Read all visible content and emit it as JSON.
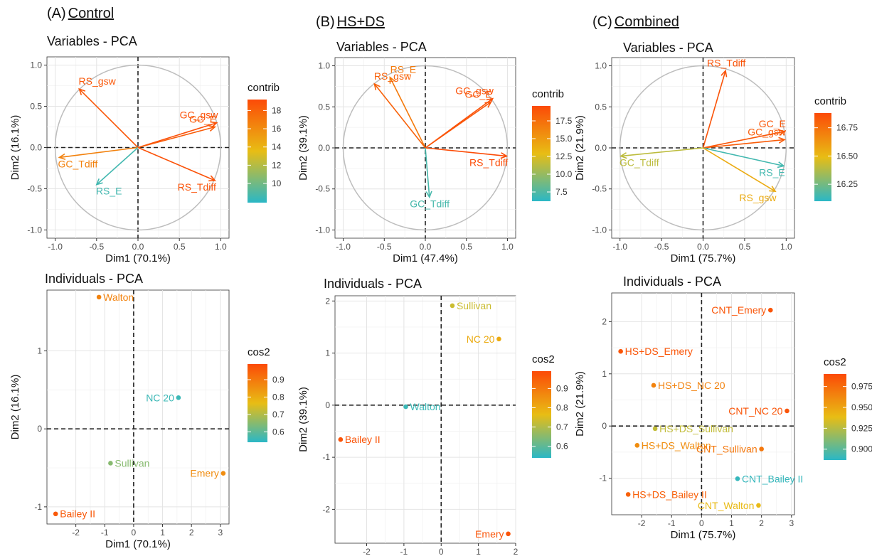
{
  "panels": [
    {
      "letter": "(A)",
      "title": "Control"
    },
    {
      "letter": "(B)",
      "title": "HS+DS"
    },
    {
      "letter": "(C)",
      "title": "Combined"
    }
  ],
  "legend_colors": {
    "low": "#2ab7c6",
    "mid": "#e8bd14",
    "high": "#fc4a07"
  },
  "chart_data": [
    {
      "type": "scatter",
      "subtype": "pca-variables-correlation-circle",
      "panel": "A",
      "title": "Variables - PCA",
      "xlabel": "Dim1 (70.1%)",
      "ylabel": "Dim2 (16.1%)",
      "xlim": [
        -1.1,
        1.1
      ],
      "ylim": [
        -1.1,
        1.1
      ],
      "xticks": [
        "-1.0",
        "-0.5",
        "0.0",
        "0.5",
        "1.0"
      ],
      "yticks": [
        "1.0",
        "0.5",
        "0.0",
        "-0.5",
        "-1.0"
      ],
      "grid": true,
      "legend": {
        "title": "contrib",
        "position": "right",
        "min": 7.9,
        "max": 19.2,
        "ticks": [
          "18",
          "16",
          "14",
          "12",
          "10"
        ]
      },
      "variables": [
        {
          "name": "RS_gsw",
          "x": -0.71,
          "y": 0.71,
          "contrib": 18.5
        },
        {
          "name": "GC_gsw",
          "x": 0.95,
          "y": 0.3,
          "contrib": 18.9
        },
        {
          "name": "GC_E",
          "x": 0.93,
          "y": 0.25,
          "contrib": 18.3
        },
        {
          "name": "GC_Tdiff",
          "x": -0.95,
          "y": -0.12,
          "contrib": 16.5
        },
        {
          "name": "RS_E",
          "x": -0.5,
          "y": -0.45,
          "contrib": 8.6
        },
        {
          "name": "RS_Tdiff",
          "x": 0.93,
          "y": -0.4,
          "contrib": 18.8
        }
      ]
    },
    {
      "type": "scatter",
      "subtype": "pca-variables-correlation-circle",
      "panel": "B",
      "title": "Variables - PCA",
      "xlabel": "Dim1 (47.4%)",
      "ylabel": "Dim2 (39.1%)",
      "xlim": [
        -1.1,
        1.1
      ],
      "ylim": [
        -1.1,
        1.1
      ],
      "xticks": [
        "-1.0",
        "-0.5",
        "0.0",
        "0.5",
        "1.0"
      ],
      "yticks": [
        "1.0",
        "0.5",
        "0.0",
        "-0.5",
        "-1.0"
      ],
      "grid": true,
      "legend": {
        "title": "contrib",
        "position": "right",
        "min": 6.2,
        "max": 19.6,
        "ticks": [
          "17.5",
          "15.0",
          "12.5",
          "10.0",
          "7.5"
        ]
      },
      "variables": [
        {
          "name": "RS_E",
          "x": -0.43,
          "y": 0.86,
          "contrib": 16.8
        },
        {
          "name": "RS_gsw",
          "x": -0.62,
          "y": 0.78,
          "contrib": 18.2
        },
        {
          "name": "GC_gsw",
          "x": 0.82,
          "y": 0.6,
          "contrib": 19.2
        },
        {
          "name": "GC_E",
          "x": 0.8,
          "y": 0.56,
          "contrib": 18.9
        },
        {
          "name": "RS_Tdiff",
          "x": 0.99,
          "y": -0.1,
          "contrib": 19.5
        },
        {
          "name": "GC_Tdiff",
          "x": 0.05,
          "y": -0.6,
          "contrib": 7.2
        }
      ]
    },
    {
      "type": "scatter",
      "subtype": "pca-variables-correlation-circle",
      "panel": "C",
      "title": "Variables - PCA",
      "xlabel": "Dim1 (75.7%)",
      "ylabel": "Dim2 (21.9%)",
      "xlim": [
        -1.1,
        1.1
      ],
      "ylim": [
        -1.1,
        1.1
      ],
      "xticks": [
        "-1.0",
        "-0.5",
        "0.0",
        "0.5",
        "1.0"
      ],
      "yticks": [
        "1.0",
        "0.5",
        "0.0",
        "-0.5",
        "-1.0"
      ],
      "grid": true,
      "legend": {
        "title": "contrib",
        "position": "right",
        "min": 16.1,
        "max": 16.88,
        "ticks": [
          "16.75",
          "16.50",
          "16.25"
        ]
      },
      "variables": [
        {
          "name": "RS_Tdiff",
          "x": 0.27,
          "y": 0.94,
          "contrib": 16.85
        },
        {
          "name": "GC_E",
          "x": 0.98,
          "y": 0.2,
          "contrib": 16.84
        },
        {
          "name": "GC_gsw",
          "x": 0.98,
          "y": 0.1,
          "contrib": 16.82
        },
        {
          "name": "GC_Tdiff",
          "x": -0.99,
          "y": -0.1,
          "contrib": 16.4
        },
        {
          "name": "RS_E",
          "x": 0.97,
          "y": -0.22,
          "contrib": 16.15
        },
        {
          "name": "RS_gsw",
          "x": 0.87,
          "y": -0.53,
          "contrib": 16.55
        }
      ]
    },
    {
      "type": "scatter",
      "subtype": "pca-individuals",
      "panel": "A",
      "title": "Individuals - PCA",
      "xlabel": "Dim1 (70.1%)",
      "ylabel": "Dim2 (16.1%)",
      "xlim": [
        -3.0,
        3.3
      ],
      "ylim": [
        -1.22,
        1.78
      ],
      "xticks": [
        "-2",
        "-1",
        "0",
        "1",
        "2",
        "3"
      ],
      "yticks": [
        "1",
        "0",
        "-1"
      ],
      "grid": true,
      "legend": {
        "title": "cos2",
        "position": "right",
        "min": 0.54,
        "max": 0.99,
        "ticks": [
          "0.9",
          "0.8",
          "0.7",
          "0.6"
        ]
      },
      "points": [
        {
          "name": "Walton",
          "x": -1.2,
          "y": 1.69,
          "cos2": 0.88
        },
        {
          "name": "NC 20",
          "x": 1.55,
          "y": 0.4,
          "cos2": 0.56
        },
        {
          "name": "Sullivan",
          "x": -0.8,
          "y": -0.44,
          "cos2": 0.65
        },
        {
          "name": "Emery",
          "x": 3.1,
          "y": -0.57,
          "cos2": 0.86
        },
        {
          "name": "Bailey II",
          "x": -2.7,
          "y": -1.09,
          "cos2": 0.96
        }
      ]
    },
    {
      "type": "scatter",
      "subtype": "pca-individuals",
      "panel": "B",
      "title": "Individuals - PCA",
      "xlabel": "Dim1 (47.4%)",
      "ylabel": "Dim2 (39.1%)",
      "xlim": [
        -2.85,
        2.0
      ],
      "ylim": [
        -2.65,
        2.1
      ],
      "xticks": [
        "-2",
        "-1",
        "0",
        "1",
        "2"
      ],
      "yticks": [
        "2",
        "1",
        "0",
        "-1",
        "-2"
      ],
      "grid": true,
      "legend": {
        "title": "cos2",
        "position": "right",
        "min": 0.54,
        "max": 0.99,
        "ticks": [
          "0.9",
          "0.8",
          "0.7",
          "0.6"
        ]
      },
      "points": [
        {
          "name": "Sullivan",
          "x": 0.3,
          "y": 1.91,
          "cos2": 0.73
        },
        {
          "name": "NC 20",
          "x": 1.55,
          "y": 1.27,
          "cos2": 0.8
        },
        {
          "name": "Walton",
          "x": -0.95,
          "y": -0.03,
          "cos2": 0.56
        },
        {
          "name": "Bailey II",
          "x": -2.7,
          "y": -0.66,
          "cos2": 0.97
        },
        {
          "name": "Emery",
          "x": 1.8,
          "y": -2.47,
          "cos2": 0.97
        }
      ]
    },
    {
      "type": "scatter",
      "subtype": "pca-individuals",
      "panel": "C",
      "title": "Individuals - PCA",
      "xlabel": "Dim1 (75.7%)",
      "ylabel": "Dim2 (21.9%)",
      "xlim": [
        -3.0,
        3.1
      ],
      "ylim": [
        -1.7,
        2.55
      ],
      "xticks": [
        "-2",
        "-1",
        "0",
        "1",
        "2",
        "3"
      ],
      "yticks": [
        "2",
        "1",
        "0",
        "-1"
      ],
      "grid": true,
      "legend": {
        "title": "cos2",
        "position": "right",
        "min": 0.887,
        "max": 0.99,
        "ticks": [
          "0.975",
          "0.950",
          "0.925",
          "0.900"
        ]
      },
      "points": [
        {
          "name": "CNT_Emery",
          "x": 2.3,
          "y": 2.22,
          "cos2": 0.985
        },
        {
          "name": "HS+DS_Emery",
          "x": -2.7,
          "y": 1.43,
          "cos2": 0.985
        },
        {
          "name": "HS+DS_NC 20",
          "x": -1.6,
          "y": 0.78,
          "cos2": 0.965
        },
        {
          "name": "CNT_NC 20",
          "x": 2.85,
          "y": 0.29,
          "cos2": 0.985
        },
        {
          "name": "HS+DS_Sullivan",
          "x": -1.55,
          "y": -0.05,
          "cos2": 0.928
        },
        {
          "name": "HS+DS_Walton",
          "x": -2.15,
          "y": -0.37,
          "cos2": 0.96
        },
        {
          "name": "CNT_Sullivan",
          "x": 2.0,
          "y": -0.44,
          "cos2": 0.97
        },
        {
          "name": "CNT_Bailey II",
          "x": 1.2,
          "y": -1.01,
          "cos2": 0.89
        },
        {
          "name": "HS+DS_Bailey II",
          "x": -2.45,
          "y": -1.31,
          "cos2": 0.98
        },
        {
          "name": "CNT_Walton",
          "x": 1.9,
          "y": -1.52,
          "cos2": 0.94
        }
      ]
    }
  ]
}
